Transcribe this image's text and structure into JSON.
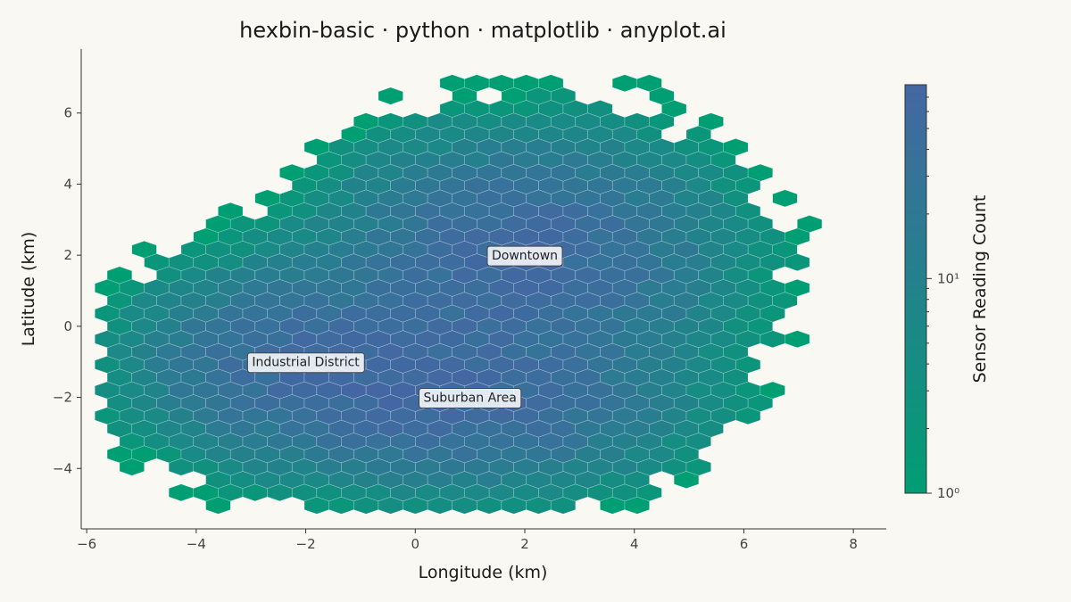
{
  "chart_data": {
    "type": "heatmap",
    "subtype": "hexbin",
    "title": "hexbin-basic · python · matplotlib · anyplot.ai",
    "xlabel": "Longitude (km)",
    "ylabel": "Latitude (km)",
    "xlim": [
      -6.1,
      8.6
    ],
    "ylim": [
      -5.7,
      7.8
    ],
    "xticks": [
      -6,
      -4,
      -2,
      0,
      2,
      4,
      6,
      8
    ],
    "yticks": [
      -4,
      -2,
      0,
      2,
      4,
      6
    ],
    "colorbar": {
      "label": "Sensor Reading Count",
      "scale": "log",
      "range": [
        1,
        80
      ],
      "ticks": [
        {
          "value": 1,
          "label": "10⁰"
        },
        {
          "value": 10,
          "label": "10¹"
        }
      ],
      "colors": [
        "#009E73",
        "#4467A3"
      ]
    },
    "grid": false,
    "annotations": [
      {
        "text": "Downtown",
        "x": 2.0,
        "y": 2.0
      },
      {
        "text": "Industrial District",
        "x": -2.0,
        "y": -1.0
      },
      {
        "text": "Suburban Area",
        "x": 1.0,
        "y": -2.0
      }
    ],
    "clusters": [
      {
        "name": "Downtown",
        "x": 2.0,
        "y": 2.0,
        "sx": 1.8,
        "sy": 1.7,
        "peak": 60
      },
      {
        "name": "Industrial District",
        "x": -2.0,
        "y": -1.0,
        "sx": 1.6,
        "sy": 1.4,
        "peak": 50
      },
      {
        "name": "Suburban Area",
        "x": 1.0,
        "y": -2.0,
        "sx": 1.9,
        "sy": 1.3,
        "peak": 55
      }
    ],
    "hex_spacing": {
      "dx": 0.45,
      "dy": 0.36
    }
  }
}
